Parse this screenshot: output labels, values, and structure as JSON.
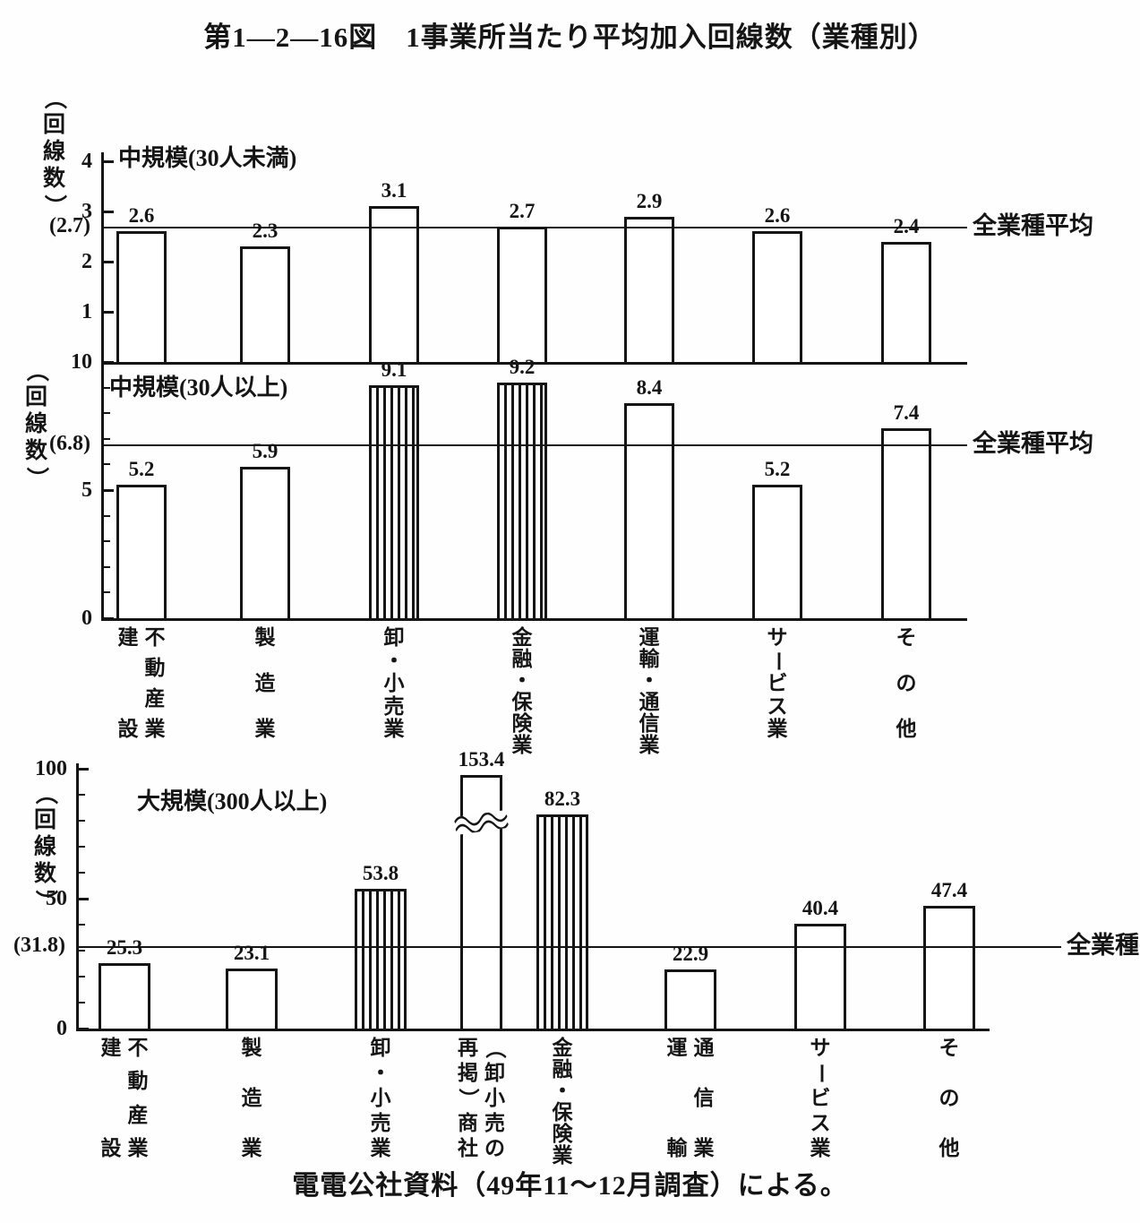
{
  "page": {
    "title": "第1—2—16図　1事業所当たり平均加入回線数（業種別）",
    "source_note": "電電公社資料（49年11～12月調査）による。"
  },
  "chart_data": [
    {
      "type": "bar",
      "title": "中規模(30人未満)",
      "ylabel": "（回線数）",
      "ylim": [
        0,
        4.4
      ],
      "yticks": [
        1,
        2,
        3,
        4
      ],
      "minor_tick_step": 0,
      "grid": false,
      "legend": "none",
      "average_line": {
        "value": 2.7,
        "axis_label": "(2.7)",
        "line_label": "全業種平均"
      },
      "categories": [
        "不動産・建設業",
        "製造業",
        "卸・小売業",
        "金融・保険業",
        "運輸・通信業",
        "サービス業",
        "その他"
      ],
      "category_columns": [
        [
          "不動産業",
          "建設"
        ],
        [
          "製造業"
        ],
        [
          "卸・小売業"
        ],
        [
          "金融・保険業"
        ],
        [
          "運輸・通信業"
        ],
        [
          "サービス業"
        ],
        [
          "その他"
        ]
      ],
      "values": [
        2.6,
        2.3,
        3.1,
        2.7,
        2.9,
        2.6,
        2.4
      ],
      "value_labels": [
        "2.6",
        "2.3",
        "3.1",
        "2.7",
        "2.9",
        "2.6",
        "2.4"
      ],
      "hatched_bars": []
    },
    {
      "type": "bar",
      "title": "中規模(30人以上)",
      "ylabel": "（回線数）",
      "ylim": [
        0,
        10
      ],
      "yticks": [
        0,
        5,
        10
      ],
      "minor_tick_step": 1,
      "grid": false,
      "legend": "none",
      "average_line": {
        "value": 6.8,
        "axis_label": "(6.8)",
        "line_label": "全業種平均"
      },
      "categories": [
        "不動産・建設業",
        "製造業",
        "卸・小売業",
        "金融・保険業",
        "運輸・通信業",
        "サービス業",
        "その他"
      ],
      "category_columns": [
        [
          "不動産業",
          "建設"
        ],
        [
          "製造業"
        ],
        [
          "卸・小売業"
        ],
        [
          "金融・保険業"
        ],
        [
          "運輸・通信業"
        ],
        [
          "サービス業"
        ],
        [
          "その他"
        ]
      ],
      "values": [
        5.2,
        5.9,
        9.1,
        9.2,
        8.4,
        5.2,
        7.4
      ],
      "value_labels": [
        "5.2",
        "5.9",
        "9.1",
        "9.2",
        "8.4",
        "5.2",
        "7.4"
      ],
      "hatched_bars": [
        2,
        3
      ]
    },
    {
      "type": "bar",
      "title": "大規模(300人以上)",
      "ylabel": "（回線数）",
      "ylim": [
        0,
        100
      ],
      "yticks": [
        0,
        50,
        100
      ],
      "minor_tick_step": 10,
      "grid": false,
      "legend": "none",
      "average_line": {
        "value": 31.8,
        "axis_label": "(31.8)",
        "line_label": "全業種平均"
      },
      "categories": [
        "不動産・建設業",
        "製造業",
        "卸・小売業",
        "（卸小売の再掲）商社",
        "金融・保険業",
        "運輸・通信業",
        "サービス業",
        "その他"
      ],
      "category_columns": [
        [
          "不動産業",
          "建設"
        ],
        [
          "製造業"
        ],
        [
          "卸・小売業"
        ],
        [
          "（卸小売の",
          "再掲）商社"
        ],
        [
          "金融・保険業"
        ],
        [
          "通信業",
          "運輸"
        ],
        [
          "サービス業"
        ],
        [
          "その他"
        ]
      ],
      "values": [
        25.3,
        23.1,
        53.8,
        153.4,
        82.3,
        22.9,
        40.4,
        47.4
      ],
      "value_labels": [
        "25.3",
        "23.1",
        "53.8",
        "153.4",
        "82.3",
        "22.9",
        "40.4",
        "47.4"
      ],
      "hatched_bars": [
        2,
        4
      ],
      "broken_bar_index": 3
    }
  ],
  "ink_color": "#151515",
  "paper_color": "#fefefe"
}
